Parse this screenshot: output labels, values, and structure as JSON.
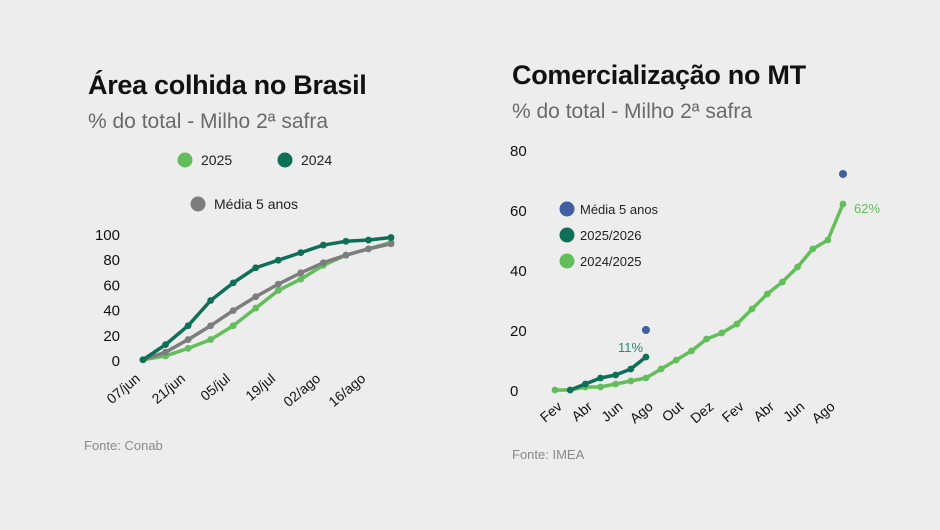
{
  "colors": {
    "green_light": "#62bd5a",
    "green_dark": "#0e6f58",
    "gray": "#7d7d7d",
    "blue": "#3f5fa0",
    "label_teal": "#2a8a76"
  },
  "chart_data": [
    {
      "type": "line",
      "title": "Área colhida no Brasil",
      "subtitle": "% do total - Milho 2ª safra",
      "source": "Fonte: Conab",
      "xlabel": "",
      "ylabel": "",
      "ylim": [
        0,
        100
      ],
      "yticks": [
        "100",
        "80",
        "60",
        "40",
        "20",
        "0"
      ],
      "xticks": [
        "07/jun",
        "21/jun",
        "05/jul",
        "19/jul",
        "02/ago",
        "16/ago"
      ],
      "grid": false,
      "legend": [
        {
          "label": "2025",
          "color": "#62bd5a"
        },
        {
          "label": "2024",
          "color": "#0e6f58"
        },
        {
          "label": "Média 5 anos",
          "color": "#7d7d7d"
        }
      ],
      "series": [
        {
          "name": "2025",
          "color": "#62bd5a",
          "values": [
            1,
            4,
            10,
            17,
            28,
            42,
            56,
            65,
            76,
            84,
            89,
            94
          ]
        },
        {
          "name": "Média 5 anos",
          "color": "#7d7d7d",
          "values": [
            1,
            7,
            17,
            28,
            40,
            51,
            61,
            70,
            78,
            84,
            89,
            93
          ]
        },
        {
          "name": "2024",
          "color": "#0e6f58",
          "values": [
            1,
            13,
            28,
            48,
            62,
            74,
            80,
            86,
            92,
            95,
            96,
            98
          ]
        }
      ]
    },
    {
      "type": "line",
      "title": "Comercialização no MT",
      "subtitle": "% do total - Milho 2ª safra",
      "source": "Fonte: IMEA",
      "xlabel": "",
      "ylabel": "",
      "ylim": [
        0,
        80
      ],
      "yticks": [
        "80",
        "60",
        "40",
        "20",
        "0"
      ],
      "xticks": [
        "Fev",
        "Abr",
        "Jun",
        "Ago",
        "Out",
        "Dez",
        "Fev",
        "Abr",
        "Jun",
        "Ago"
      ],
      "grid": false,
      "legend": [
        {
          "label": "Média 5 anos",
          "color": "#3f5fa0"
        },
        {
          "label": "2025/2026",
          "color": "#0e6f58"
        },
        {
          "label": "2024/2025",
          "color": "#62bd5a"
        }
      ],
      "series": [
        {
          "name": "2024/2025",
          "color": "#62bd5a",
          "x": [
            0,
            1,
            2,
            3,
            4,
            5,
            6,
            7,
            8,
            9,
            10,
            11,
            12,
            13,
            14,
            15,
            16,
            17,
            18,
            19
          ],
          "values": [
            0,
            0,
            1,
            1,
            2,
            3,
            4,
            7,
            10,
            13,
            17,
            19,
            22,
            27,
            32,
            36,
            41,
            47,
            50,
            62
          ]
        },
        {
          "name": "2025/2026",
          "color": "#0e6f58",
          "x": [
            1,
            2,
            3,
            4,
            5,
            6
          ],
          "values": [
            0,
            2,
            4,
            5,
            7,
            11
          ]
        },
        {
          "name": "Média 5 anos",
          "color": "#3f5fa0",
          "x": [
            6,
            19
          ],
          "values": [
            20,
            72
          ],
          "style": "points"
        }
      ],
      "annotations": [
        {
          "text": "11%",
          "color": "#2a8a76"
        },
        {
          "text": "62%",
          "color": "#62bd5a"
        }
      ]
    }
  ]
}
